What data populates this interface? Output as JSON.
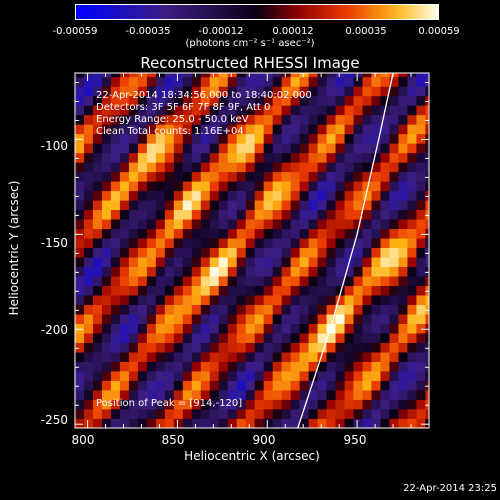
{
  "colorbar": {
    "ticks": [
      "-0.00059",
      "-0.00035",
      "-0.00012",
      "0.00012",
      "0.00035",
      "0.00059"
    ],
    "label": "(photons cm⁻² s⁻¹ asec⁻²)"
  },
  "annotations": {
    "time_range": "22-Apr-2014 18:34:56.000 to 18:40:02.000",
    "detectors": "Detectors: 3F 5F 6F 7F 8F 9F, Att 0",
    "energy": "Energy Range: 25.0 - 50.0 keV",
    "clean": "Clean     Total counts: 1.16E+04",
    "peak": "Position of Peak = [914,-120]"
  },
  "footer": {
    "timestamp": "22-Apr-2014 23:25"
  },
  "chart_data": {
    "type": "heatmap",
    "title": "Reconstructed RHESSI Image",
    "xlabel": "Heliocentric X (arcsec)",
    "ylabel": "Heliocentric Y (arcsec)",
    "xlim": [
      793,
      990
    ],
    "ylim": [
      -252,
      -65
    ],
    "x_ticks": [
      800,
      850,
      900,
      950
    ],
    "y_ticks": [
      -100,
      -150,
      -200,
      -250
    ],
    "colorbar_range": [
      -0.00059,
      0.00059
    ],
    "peak_position": [
      914,
      -120
    ],
    "limb_curve": [
      [
        917,
        -252
      ],
      [
        935,
        -200
      ],
      [
        950,
        -150
      ],
      [
        962,
        -100
      ],
      [
        970,
        -65
      ]
    ],
    "pattern": {
      "stripe_slope": 1.1,
      "stripe_period_arcsec": 50,
      "bright_centers": [
        [
          895,
          -115
        ],
        [
          930,
          -210
        ],
        [
          840,
          -120
        ],
        [
          860,
          -175
        ],
        [
          975,
          -170
        ]
      ]
    }
  }
}
